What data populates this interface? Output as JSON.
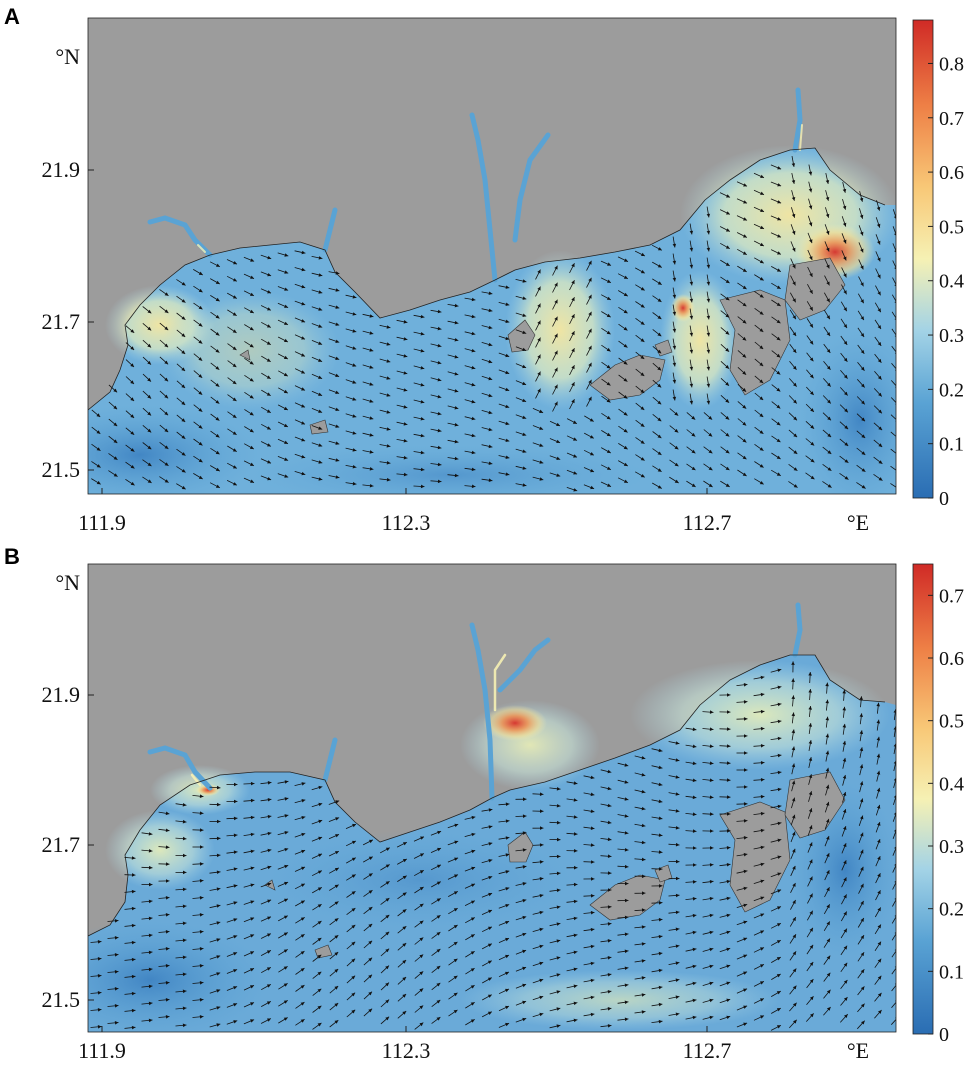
{
  "colors": {
    "land": "#9c9c9c",
    "water_low": "#2b70b5",
    "water_mid": "#9fd2e6",
    "water_mid2": "#f6f1b4",
    "water_high": "#d7302a",
    "arrow": "#111111"
  },
  "panels": [
    {
      "label": "A",
      "ylabel": "°N",
      "xlabel": "°E",
      "x_ticks": [
        "111.9",
        "112.3",
        "112.7"
      ],
      "y_ticks": [
        "21.9",
        "21.7",
        "21.5"
      ],
      "colorbar_ticks": [
        "0.8",
        "0.7",
        "0.6",
        "0.5",
        "0.4",
        "0.3",
        "0.2",
        "0.1",
        "0"
      ],
      "colorbar_max": 0.88
    },
    {
      "label": "B",
      "ylabel": "°N",
      "xlabel": "°E",
      "x_ticks": [
        "111.9",
        "112.3",
        "112.7"
      ],
      "y_ticks": [
        "21.9",
        "21.7",
        "21.5"
      ],
      "colorbar_ticks": [
        "0.7",
        "0.6",
        "0.5",
        "0.4",
        "0.3",
        "0.2",
        "0.1",
        "0"
      ],
      "colorbar_max": 0.75
    }
  ]
}
